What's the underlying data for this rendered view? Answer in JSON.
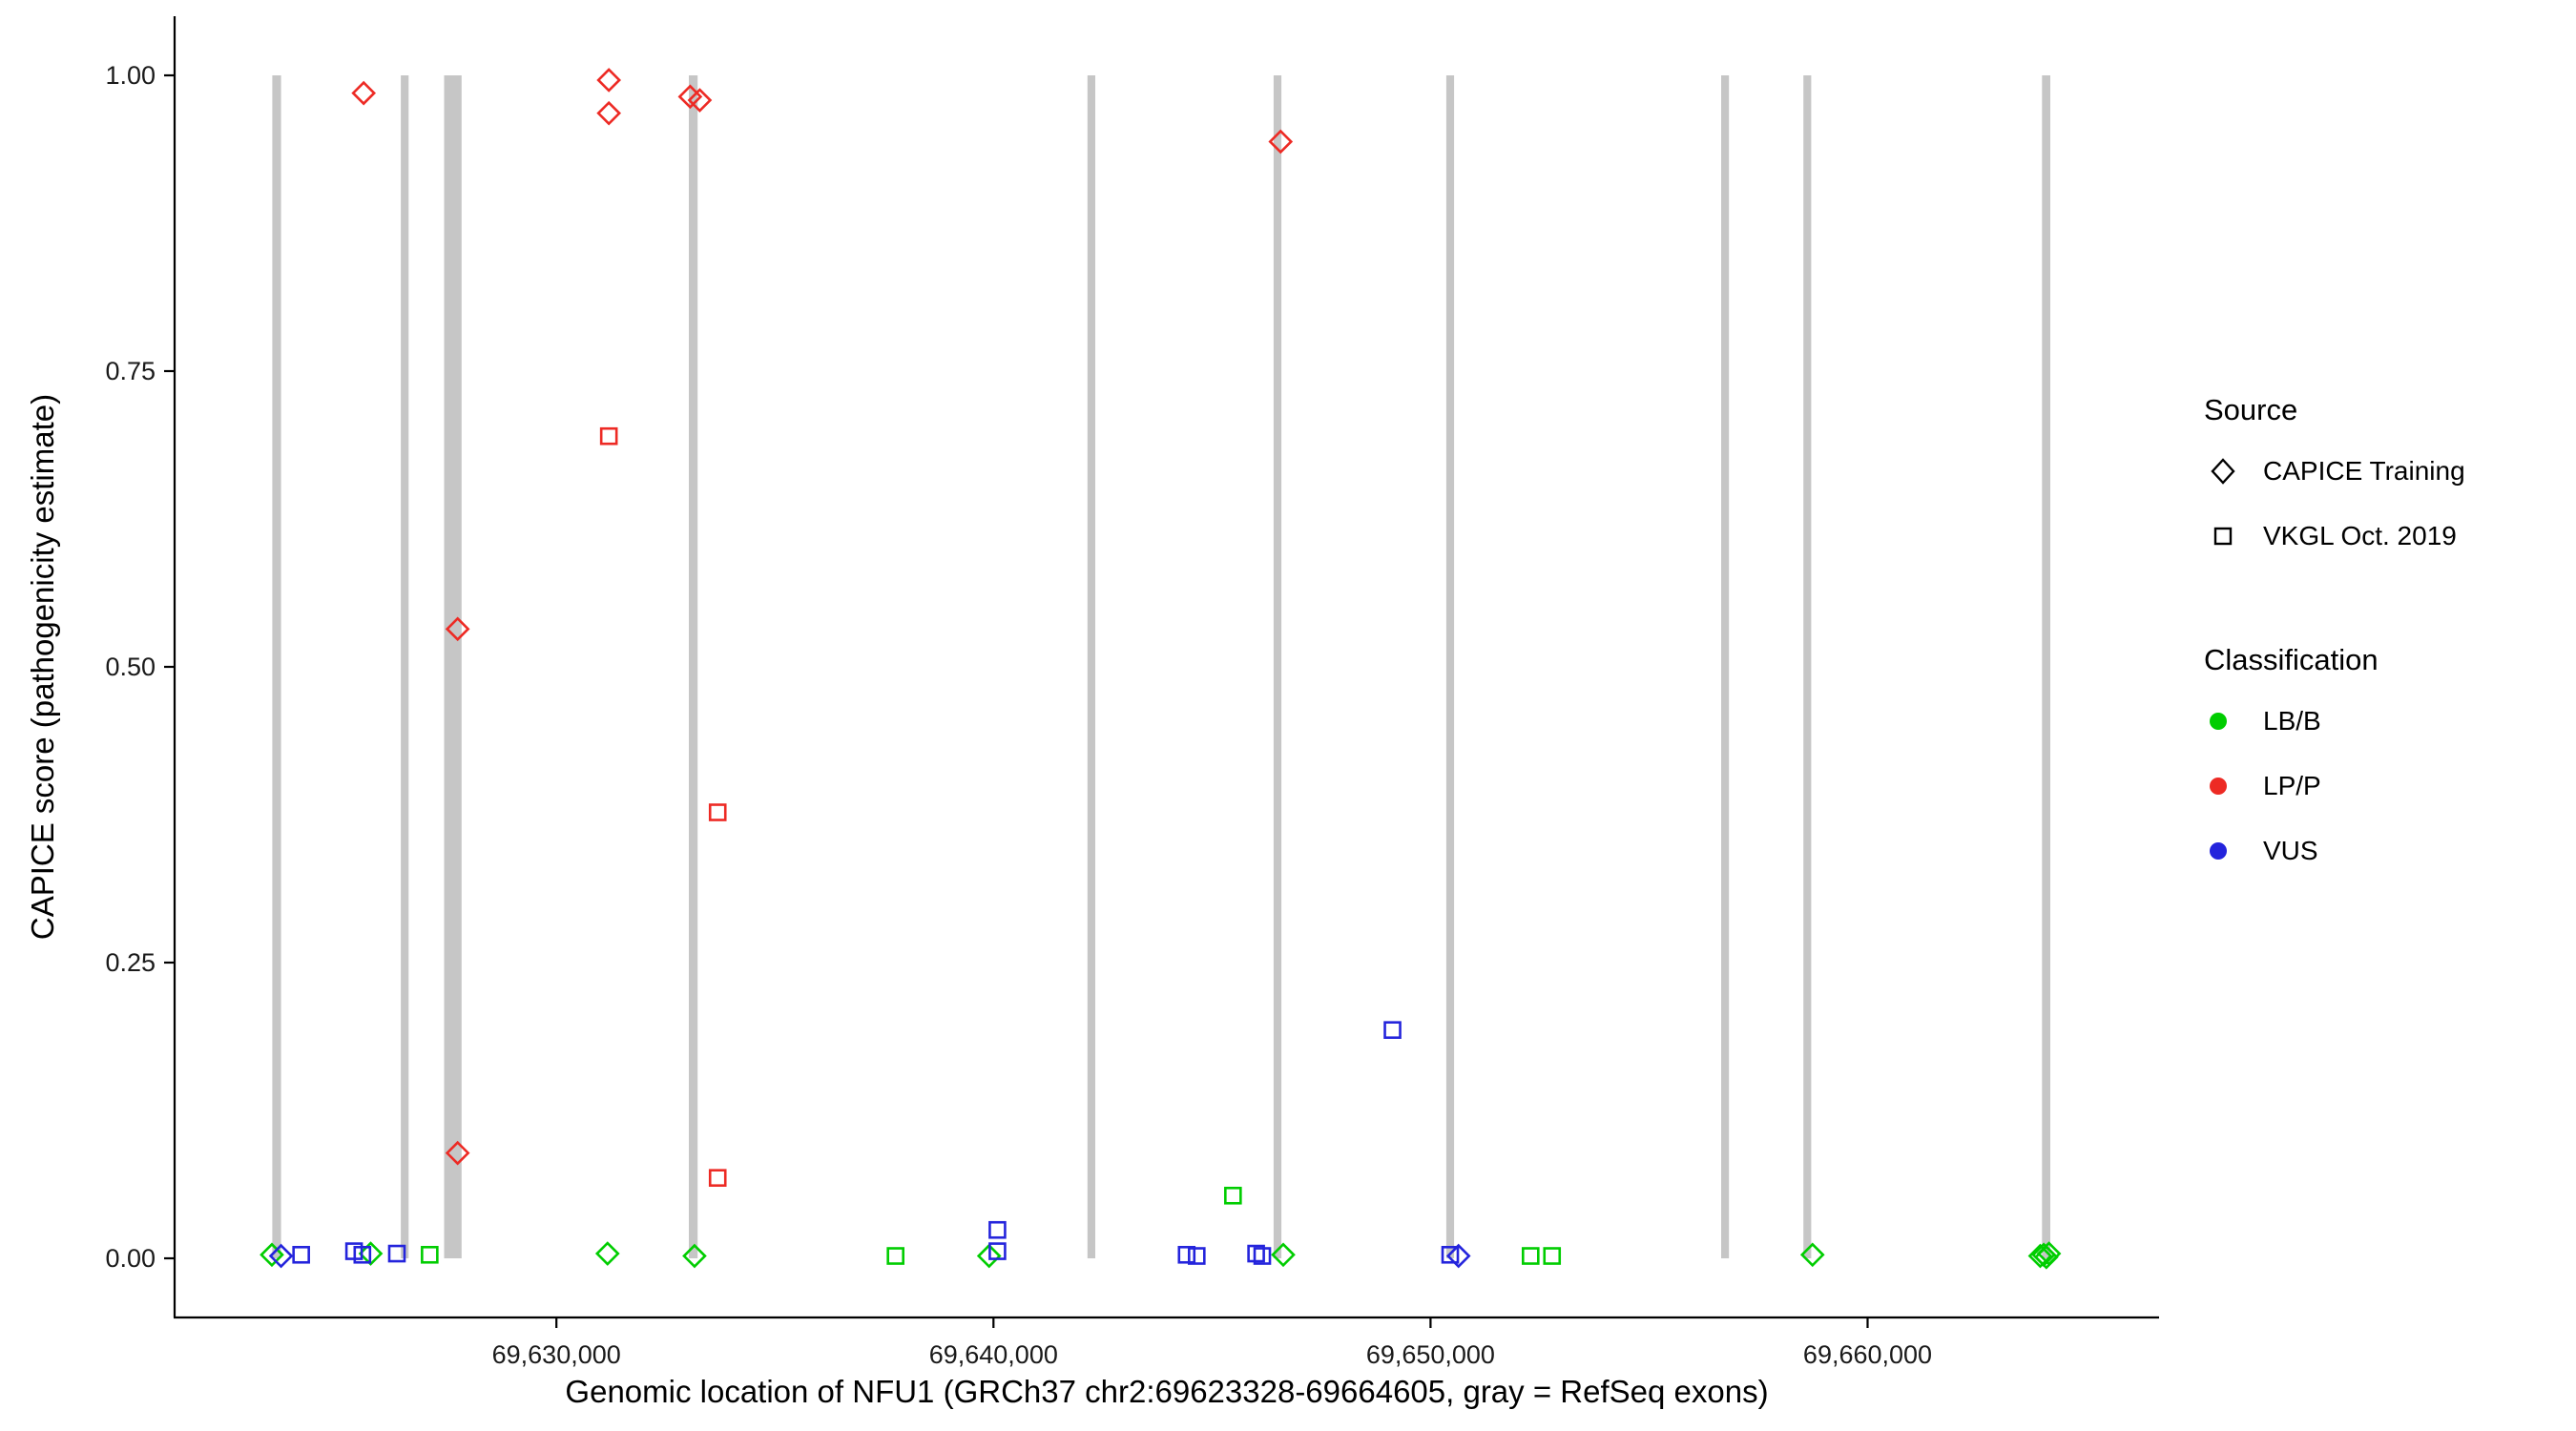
{
  "chart_data": {
    "type": "scatter",
    "title": "",
    "xlabel": "Genomic location of NFU1 (GRCh37 chr2:69623328-69664605, gray = RefSeq exons)",
    "ylabel": "CAPICE score (pathogenicity estimate)",
    "xlim": [
      69621264,
      69666669
    ],
    "ylim": [
      -0.05,
      1.05
    ],
    "grid": "off",
    "legend_position": "right",
    "x_ticks": [
      {
        "value": 69630000,
        "label": "69,630,000"
      },
      {
        "value": 69640000,
        "label": "69,640,000"
      },
      {
        "value": 69650000,
        "label": "69,650,000"
      },
      {
        "value": 69660000,
        "label": "69,660,000"
      }
    ],
    "y_ticks": [
      {
        "value": 0.0,
        "label": "0.00"
      },
      {
        "value": 0.25,
        "label": "0.25"
      },
      {
        "value": 0.5,
        "label": "0.50"
      },
      {
        "value": 0.75,
        "label": "0.75"
      },
      {
        "value": 1.0,
        "label": "1.00"
      }
    ],
    "exon_color": "#c6c6c6",
    "exon_y_span": [
      0.0,
      1.0
    ],
    "exons": [
      {
        "start": 69623500,
        "end": 69623700
      },
      {
        "start": 69626440,
        "end": 69626620
      },
      {
        "start": 69627430,
        "end": 69627830
      },
      {
        "start": 69633030,
        "end": 69633230
      },
      {
        "start": 69642150,
        "end": 69642330
      },
      {
        "start": 69646410,
        "end": 69646590
      },
      {
        "start": 69650360,
        "end": 69650540
      },
      {
        "start": 69656650,
        "end": 69656830
      },
      {
        "start": 69658530,
        "end": 69658710
      },
      {
        "start": 69663990,
        "end": 69664180
      }
    ],
    "classification_colors": {
      "LB/B": "#00cd00",
      "LP/P": "#ed2a24",
      "VUS": "#2424dc"
    },
    "series": [
      {
        "name": "CAPICE Training",
        "marker": "diamond",
        "points": [
          {
            "x": 69625590,
            "y": 0.985,
            "class": "LP/P"
          },
          {
            "x": 69631200,
            "y": 0.996,
            "class": "LP/P"
          },
          {
            "x": 69631200,
            "y": 0.968,
            "class": "LP/P"
          },
          {
            "x": 69633060,
            "y": 0.982,
            "class": "LP/P"
          },
          {
            "x": 69633280,
            "y": 0.979,
            "class": "LP/P"
          },
          {
            "x": 69627740,
            "y": 0.532,
            "class": "LP/P"
          },
          {
            "x": 69627740,
            "y": 0.089,
            "class": "LP/P"
          },
          {
            "x": 69646570,
            "y": 0.944,
            "class": "LP/P"
          },
          {
            "x": 69623490,
            "y": 0.003,
            "class": "LB/B"
          },
          {
            "x": 69623700,
            "y": 0.002,
            "class": "VUS"
          },
          {
            "x": 69625750,
            "y": 0.004,
            "class": "LB/B"
          },
          {
            "x": 69631170,
            "y": 0.004,
            "class": "LB/B"
          },
          {
            "x": 69633160,
            "y": 0.002,
            "class": "LB/B"
          },
          {
            "x": 69639900,
            "y": 0.002,
            "class": "LB/B"
          },
          {
            "x": 69646630,
            "y": 0.003,
            "class": "LB/B"
          },
          {
            "x": 69650640,
            "y": 0.002,
            "class": "VUS"
          },
          {
            "x": 69658740,
            "y": 0.003,
            "class": "LB/B"
          },
          {
            "x": 69663950,
            "y": 0.002,
            "class": "LB/B"
          },
          {
            "x": 69664030,
            "y": 0.003,
            "class": "LB/B"
          },
          {
            "x": 69664090,
            "y": 0.001,
            "class": "LB/B"
          },
          {
            "x": 69664150,
            "y": 0.004,
            "class": "LB/B"
          }
        ]
      },
      {
        "name": "VKGL Oct. 2019",
        "marker": "square",
        "points": [
          {
            "x": 69631200,
            "y": 0.695,
            "class": "LP/P"
          },
          {
            "x": 69633690,
            "y": 0.377,
            "class": "LP/P"
          },
          {
            "x": 69633690,
            "y": 0.068,
            "class": "LP/P"
          },
          {
            "x": 69649130,
            "y": 0.193,
            "class": "VUS"
          },
          {
            "x": 69624160,
            "y": 0.003,
            "class": "VUS"
          },
          {
            "x": 69625370,
            "y": 0.006,
            "class": "VUS"
          },
          {
            "x": 69625560,
            "y": 0.003,
            "class": "VUS"
          },
          {
            "x": 69626350,
            "y": 0.004,
            "class": "VUS"
          },
          {
            "x": 69627100,
            "y": 0.003,
            "class": "LB/B"
          },
          {
            "x": 69637760,
            "y": 0.002,
            "class": "LB/B"
          },
          {
            "x": 69640090,
            "y": 0.024,
            "class": "VUS"
          },
          {
            "x": 69640090,
            "y": 0.006,
            "class": "VUS"
          },
          {
            "x": 69644420,
            "y": 0.003,
            "class": "VUS"
          },
          {
            "x": 69644650,
            "y": 0.002,
            "class": "VUS"
          },
          {
            "x": 69645480,
            "y": 0.053,
            "class": "LB/B"
          },
          {
            "x": 69646010,
            "y": 0.004,
            "class": "VUS"
          },
          {
            "x": 69646150,
            "y": 0.002,
            "class": "VUS"
          },
          {
            "x": 69650450,
            "y": 0.003,
            "class": "VUS"
          },
          {
            "x": 69652290,
            "y": 0.002,
            "class": "LB/B"
          },
          {
            "x": 69652780,
            "y": 0.002,
            "class": "LB/B"
          }
        ]
      }
    ],
    "legend": {
      "source": {
        "title": "Source",
        "items": [
          {
            "label": "CAPICE Training",
            "marker": "diamond"
          },
          {
            "label": "VKGL Oct. 2019",
            "marker": "square"
          }
        ]
      },
      "classification": {
        "title": "Classification",
        "items": [
          {
            "label": "LB/B",
            "color": "#00cd00"
          },
          {
            "label": "LP/P",
            "color": "#ed2a24"
          },
          {
            "label": "VUS",
            "color": "#2424dc"
          }
        ]
      }
    }
  }
}
